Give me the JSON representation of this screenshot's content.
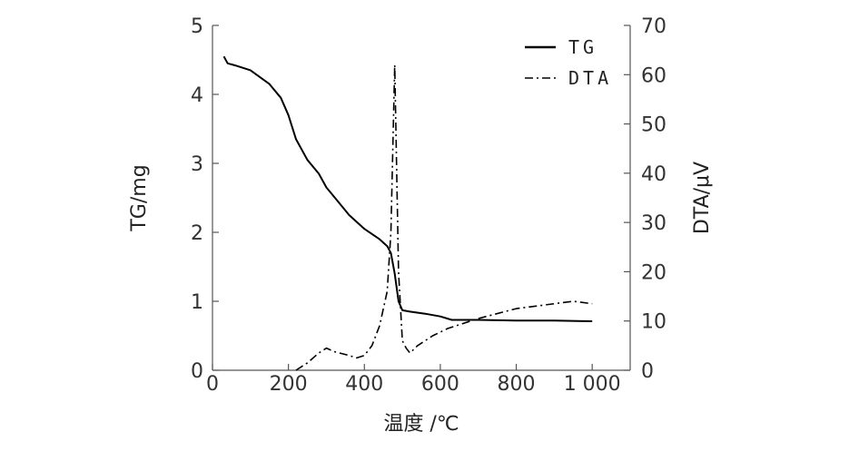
{
  "chart_data": {
    "type": "line",
    "xlabel": "温度 /℃",
    "ylabel_left": "TG/mg",
    "ylabel_right": "DTA/μV",
    "xlim": [
      0,
      1100
    ],
    "ylim_left": [
      0,
      5
    ],
    "ylim_right": [
      0,
      70
    ],
    "x_ticks": [
      0,
      200,
      400,
      600,
      800,
      1000
    ],
    "x_tick_labels": [
      "0",
      "200",
      "400",
      "600",
      "800",
      "1 000"
    ],
    "y_left_ticks": [
      0,
      1,
      2,
      3,
      4,
      5
    ],
    "y_left_tick_labels": [
      "0",
      "1",
      "2",
      "3",
      "4",
      "5"
    ],
    "y_right_ticks": [
      0,
      10,
      20,
      30,
      40,
      50,
      60,
      70
    ],
    "y_right_tick_labels": [
      "0",
      "10",
      "20",
      "30",
      "40",
      "50",
      "60",
      "70"
    ],
    "legend_position": "top-right",
    "grid": false,
    "series": [
      {
        "name": "TG",
        "axis": "left",
        "style": "solid",
        "color": "#000000",
        "x": [
          30,
          40,
          60,
          100,
          150,
          180,
          200,
          220,
          250,
          280,
          300,
          330,
          360,
          400,
          440,
          460,
          470,
          480,
          490,
          500,
          520,
          560,
          600,
          630,
          650,
          700,
          800,
          900,
          1000
        ],
        "y": [
          4.55,
          4.45,
          4.42,
          4.35,
          4.15,
          3.95,
          3.7,
          3.35,
          3.05,
          2.85,
          2.65,
          2.45,
          2.25,
          2.05,
          1.9,
          1.8,
          1.7,
          1.4,
          1.0,
          0.87,
          0.85,
          0.82,
          0.78,
          0.73,
          0.73,
          0.73,
          0.72,
          0.72,
          0.71
        ]
      },
      {
        "name": "DTA",
        "axis": "right",
        "style": "dash-dot",
        "color": "#000000",
        "x": [
          220,
          250,
          280,
          300,
          320,
          360,
          380,
          400,
          420,
          440,
          460,
          470,
          480,
          490,
          500,
          510,
          520,
          540,
          580,
          620,
          700,
          800,
          900,
          950,
          1000
        ],
        "y": [
          0,
          1.5,
          3.5,
          4.5,
          3.8,
          3.0,
          2.5,
          3.0,
          5.0,
          9.0,
          16,
          28,
          62,
          20,
          6,
          4.5,
          3.5,
          5,
          7,
          8.5,
          10.5,
          12.5,
          13.5,
          14,
          13.5
        ]
      }
    ]
  }
}
